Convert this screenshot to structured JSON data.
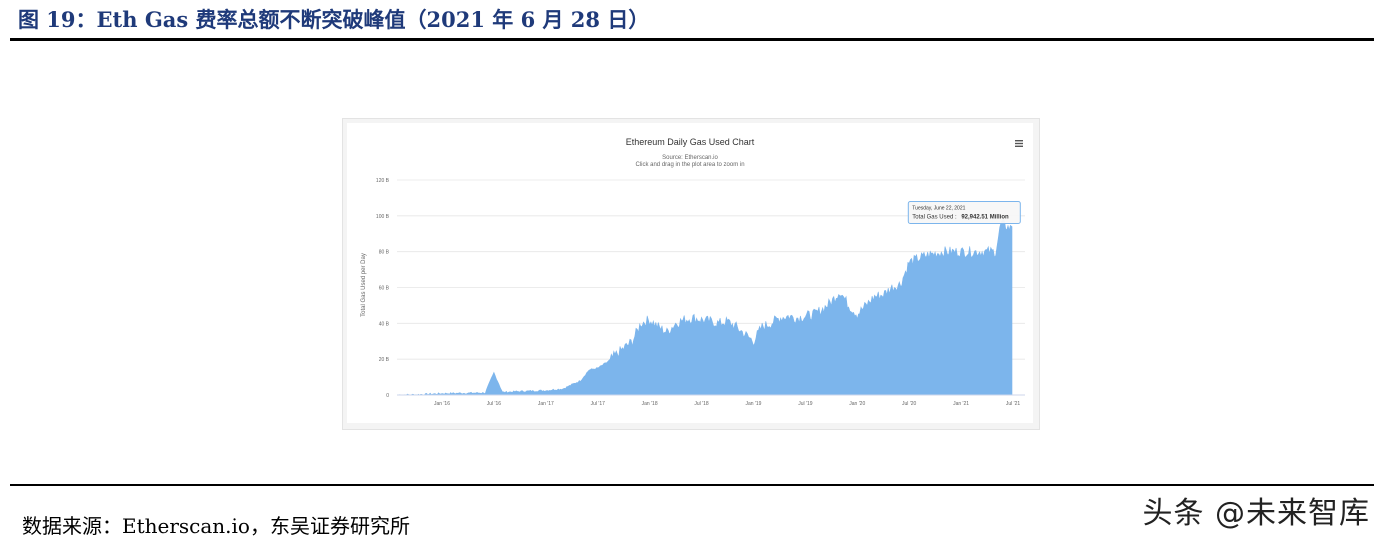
{
  "figure": {
    "title": "图 19：Eth Gas 费率总额不断突破峰值（2021 年 6 月 28 日）",
    "source": "数据来源：Etherscan.io，东吴证券研究所",
    "watermark": "头条 @未来智库"
  },
  "chart_data": {
    "type": "area",
    "title": "Ethereum Daily Gas Used Chart",
    "subtitle": "Source: Etherscan.io",
    "subtitle2": "Click and drag in the plot area to zoom in",
    "ylabel": "Total Gas Used per Day",
    "xlabel": "",
    "menu_icon": "hamburger-menu-icon",
    "color": "#7cb5ec",
    "grid": true,
    "ylim": [
      0,
      120
    ],
    "y_ticks": [
      {
        "v": 0,
        "label": "0"
      },
      {
        "v": 20,
        "label": "20 B"
      },
      {
        "v": 40,
        "label": "40 B"
      },
      {
        "v": 60,
        "label": "60 B"
      },
      {
        "v": 80,
        "label": "80 B"
      },
      {
        "v": 100,
        "label": "100 B"
      },
      {
        "v": 120,
        "label": "120 B"
      }
    ],
    "x_ticks": [
      "Jan '16",
      "Jul '16",
      "Jan '17",
      "Jul '17",
      "Jan '18",
      "Jul '18",
      "Jan '19",
      "Jul '19",
      "Jan '20",
      "Jul '20",
      "Jan '21",
      "Jul '21"
    ],
    "x_start": "2015-08",
    "series": [
      {
        "points": [
          [
            "2015-08",
            0.1
          ],
          [
            "2015-10",
            0.2
          ],
          [
            "2016-01",
            0.8
          ],
          [
            "2016-03",
            1.0
          ],
          [
            "2016-06",
            1.2
          ],
          [
            "2016-07",
            12.5
          ],
          [
            "2016-08",
            1.5
          ],
          [
            "2016-10",
            2.0
          ],
          [
            "2017-01",
            2.5
          ],
          [
            "2017-03",
            3.5
          ],
          [
            "2017-05",
            8
          ],
          [
            "2017-06",
            14
          ],
          [
            "2017-07",
            15
          ],
          [
            "2017-08",
            18
          ],
          [
            "2017-09",
            22
          ],
          [
            "2017-10",
            26
          ],
          [
            "2017-11",
            30
          ],
          [
            "2017-12",
            40
          ],
          [
            "2018-01",
            42
          ],
          [
            "2018-02",
            38
          ],
          [
            "2018-03",
            35
          ],
          [
            "2018-04",
            40
          ],
          [
            "2018-05",
            42
          ],
          [
            "2018-06",
            43
          ],
          [
            "2018-07",
            42
          ],
          [
            "2018-08",
            41
          ],
          [
            "2018-09",
            40
          ],
          [
            "2018-10",
            41
          ],
          [
            "2018-11",
            38
          ],
          [
            "2018-12",
            34
          ],
          [
            "2019-01",
            30
          ],
          [
            "2019-02",
            38
          ],
          [
            "2019-03",
            40
          ],
          [
            "2019-04",
            43
          ],
          [
            "2019-05",
            44
          ],
          [
            "2019-06",
            43
          ],
          [
            "2019-07",
            44
          ],
          [
            "2019-08",
            45
          ],
          [
            "2019-09",
            48
          ],
          [
            "2019-10",
            52
          ],
          [
            "2019-11",
            58
          ],
          [
            "2019-12",
            50
          ],
          [
            "2020-01",
            45
          ],
          [
            "2020-02",
            50
          ],
          [
            "2020-03",
            55
          ],
          [
            "2020-04",
            56
          ],
          [
            "2020-05",
            60
          ],
          [
            "2020-06",
            62
          ],
          [
            "2020-07",
            74
          ],
          [
            "2020-08",
            76
          ],
          [
            "2020-09",
            78
          ],
          [
            "2020-10",
            79
          ],
          [
            "2020-11",
            80
          ],
          [
            "2020-12",
            80
          ],
          [
            "2021-01",
            80
          ],
          [
            "2021-02",
            80
          ],
          [
            "2021-03",
            80
          ],
          [
            "2021-04",
            80
          ],
          [
            "2021-05",
            80
          ],
          [
            "2021-05-20",
            96
          ],
          [
            "2021-06-22",
            92.9
          ],
          [
            "2021-06-28",
            94
          ]
        ]
      }
    ],
    "tooltip": {
      "date": "Tuesday, June 22, 2021",
      "label": "Total Gas Used :",
      "value": "92,942.51 Million"
    }
  }
}
